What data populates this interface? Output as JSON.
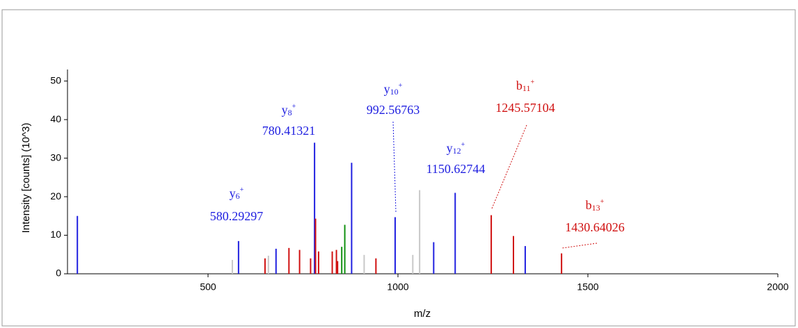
{
  "chart_data": {
    "type": "spectrum",
    "x_label": "m/z",
    "y_label": "Intensity [counts] (10^3)",
    "xlim": [
      130,
      2000
    ],
    "xticks": [
      500,
      1000,
      1500,
      2000
    ],
    "ylim": [
      0,
      53
    ],
    "yticks": [
      0,
      10,
      20,
      30,
      40,
      50
    ],
    "peaks": [
      {
        "x": 156,
        "y": 15.0,
        "color": "#2020e0"
      },
      {
        "x": 564,
        "y": 3.6,
        "color": "#c8c8c8"
      },
      {
        "x": 580.29297,
        "y": 8.5,
        "color": "#2020e0",
        "ion": "y",
        "ion_number": "6",
        "charge": "+"
      },
      {
        "x": 650,
        "y": 4.0,
        "color": "#d01010"
      },
      {
        "x": 659,
        "y": 4.7,
        "color": "#c8c8c8"
      },
      {
        "x": 679,
        "y": 6.5,
        "color": "#2020e0"
      },
      {
        "x": 713,
        "y": 6.7,
        "color": "#d01010"
      },
      {
        "x": 741,
        "y": 6.2,
        "color": "#d01010"
      },
      {
        "x": 770,
        "y": 4.0,
        "color": "#d01010"
      },
      {
        "x": 780.41321,
        "y": 34.0,
        "color": "#2020e0",
        "ion": "y",
        "ion_number": "8",
        "charge": "+"
      },
      {
        "x": 783,
        "y": 14.3,
        "color": "#d01010"
      },
      {
        "x": 791,
        "y": 5.8,
        "color": "#d01010"
      },
      {
        "x": 827,
        "y": 5.8,
        "color": "#d01010"
      },
      {
        "x": 838,
        "y": 6.2,
        "color": "#d01010"
      },
      {
        "x": 841,
        "y": 3.3,
        "color": "#d01010"
      },
      {
        "x": 852,
        "y": 7.0,
        "color": "#109010"
      },
      {
        "x": 860,
        "y": 12.7,
        "color": "#109010"
      },
      {
        "x": 878,
        "y": 28.8,
        "color": "#2020e0"
      },
      {
        "x": 911,
        "y": 4.9,
        "color": "#c8c8c8"
      },
      {
        "x": 942,
        "y": 4.0,
        "color": "#d01010"
      },
      {
        "x": 992.56763,
        "y": 14.7,
        "color": "#2020e0",
        "ion": "y",
        "ion_number": "10",
        "charge": "+"
      },
      {
        "x": 1039,
        "y": 4.9,
        "color": "#c8c8c8"
      },
      {
        "x": 1057,
        "y": 21.7,
        "color": "#c8c8c8"
      },
      {
        "x": 1094,
        "y": 8.2,
        "color": "#2020e0"
      },
      {
        "x": 1150.62744,
        "y": 21.0,
        "color": "#2020e0",
        "ion": "y",
        "ion_number": "12",
        "charge": "+"
      },
      {
        "x": 1245.57104,
        "y": 15.2,
        "color": "#d01010",
        "ion": "b",
        "ion_number": "11",
        "charge": "+"
      },
      {
        "x": 1304,
        "y": 9.8,
        "color": "#d01010"
      },
      {
        "x": 1335,
        "y": 7.2,
        "color": "#2020e0"
      },
      {
        "x": 1430.64026,
        "y": 5.3,
        "color": "#d01010",
        "ion": "b",
        "ion_number": "13",
        "charge": "+"
      }
    ]
  }
}
